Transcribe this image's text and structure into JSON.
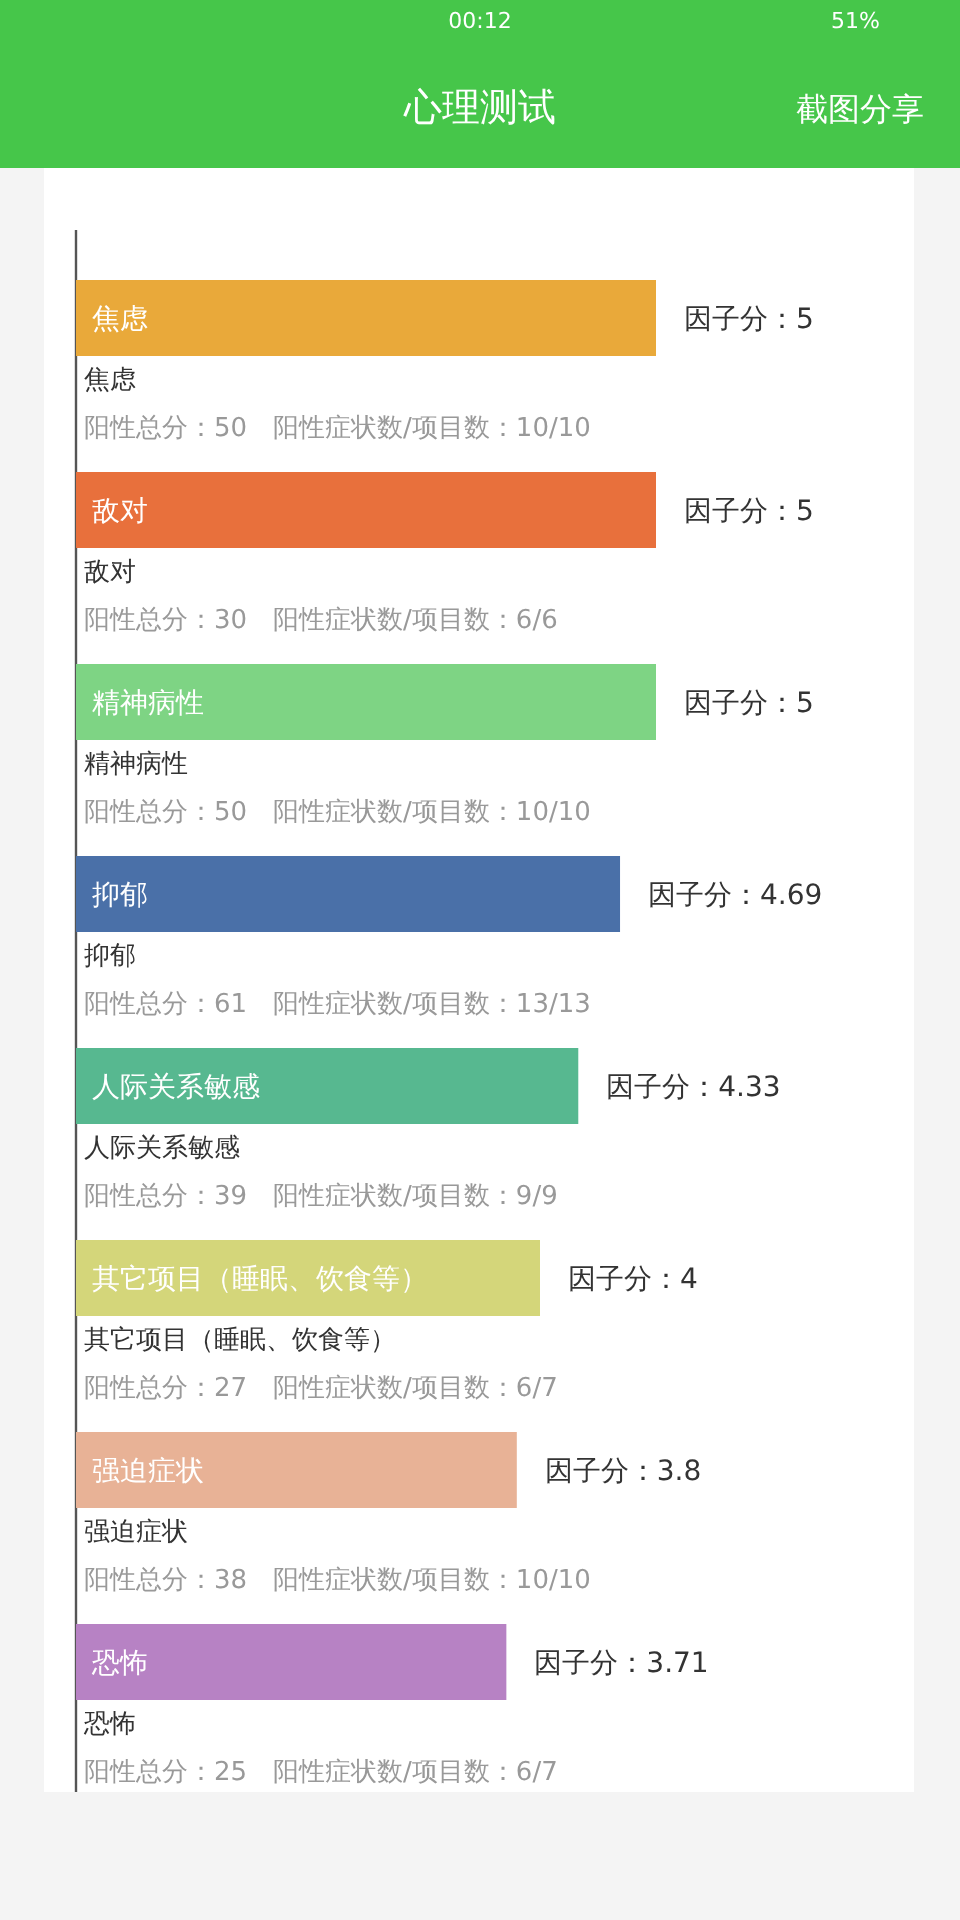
{
  "chart_data": {
    "type": "bar",
    "orientation": "horizontal",
    "title": "心理测试",
    "categories": [
      "焦虑",
      "敌对",
      "精神病性",
      "抑郁",
      "人际关系敏感",
      "其它项目（睡眠、饮食等）",
      "强迫症状",
      "恐怖"
    ],
    "values": [
      5,
      5,
      5,
      4.69,
      4.33,
      4,
      3.8,
      3.71
    ],
    "colors": [
      "#e9a93a",
      "#e8703c",
      "#7ed484",
      "#4a70a8",
      "#57b890",
      "#d4d67a",
      "#e8b296",
      "#b782c4"
    ],
    "value_labels": [
      "因子分：5",
      "因子分：5",
      "因子分：5",
      "因子分：4.69",
      "因子分：4.33",
      "因子分：4",
      "因子分：3.8",
      "因子分：3.71"
    ],
    "annotations": [
      "00:12",
      "51%",
      "截图分享",
      "焦虑",
      "阳性总分：50　阳性症状数/项目数：10/10",
      "敌对",
      "阳性总分：30　阳性症状数/项目数：6/6",
      "精神病性",
      "阳性总分：50　阳性症状数/项目数：10/10",
      "抑郁",
      "阳性总分：61　阳性症状数/项目数：13/13",
      "人际关系敏感",
      "阳性总分：39　阳性症状数/项目数：9/9",
      "其它项目（睡眠、饮食等）",
      "阳性总分：27　阳性症状数/项目数：6/7",
      "强迫症状",
      "阳性总分：38　阳性症状数/项目数：10/10",
      "恐怖",
      "阳性总分：25　阳性症状数/项目数：6/7"
    ]
  }
}
